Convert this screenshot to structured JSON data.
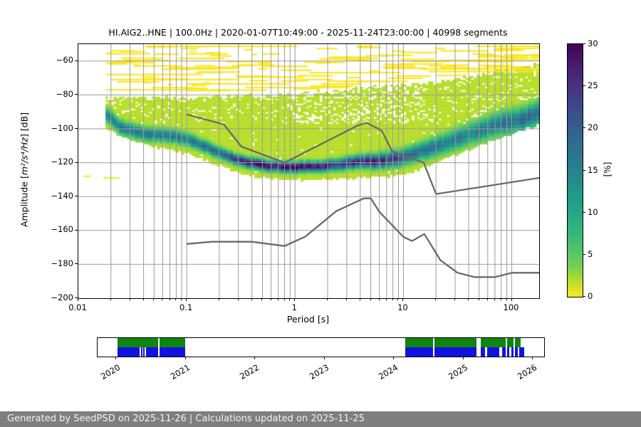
{
  "title": "HI.AIG2..HNE | 100.0Hz | 2020-01-07T10:49:00 - 2025-11-24T23:00:00 | 40998 segments",
  "footer": {
    "text": "Generated by SeedPSD on 2025-11-26 | Calculations updated on 2025-11-25",
    "bg": "#7f7f7f",
    "fg": "#f2f2f2"
  },
  "chart_data": {
    "type": "heatmap",
    "title": "HI.AIG2..HNE | 100.0Hz | 2020-01-07T10:49:00 - 2025-11-24T23:00:00 | 40998 segments",
    "xlabel": "Period [s]",
    "ylabel": "Amplitude [m²/s⁴/Hz] [dB]",
    "ylabel_parts": {
      "prefix": "Amplitude [",
      "math": "m²/s⁴/Hz",
      "suffix": "] [dB]"
    },
    "x_scale": "log",
    "xlim": [
      0.01,
      179
    ],
    "ylim": [
      -200,
      -50
    ],
    "grid": true,
    "x_major_ticks": [
      0.01,
      0.1,
      1,
      10,
      100
    ],
    "x_major_labels": [
      "0.01",
      "0.1",
      "1",
      "10",
      "100"
    ],
    "y_ticks": [
      -60,
      -80,
      -100,
      -120,
      -140,
      -160,
      -180,
      -200
    ],
    "y_tick_labels": [
      "−60",
      "−80",
      "−100",
      "−120",
      "−140",
      "−160",
      "−180",
      "−200"
    ],
    "grid_color": "#9b9b9b",
    "colorbar": {
      "label": "[%]",
      "min": 0,
      "max": 30,
      "ticks": [
        0,
        5,
        10,
        15,
        20,
        25,
        30
      ],
      "colormap": "viridis_r",
      "viridis_stops": [
        [
          0,
          "#440154"
        ],
        [
          0.125,
          "#482878"
        ],
        [
          0.25,
          "#3e4989"
        ],
        [
          0.375,
          "#31688e"
        ],
        [
          0.5,
          "#26828e"
        ],
        [
          0.625,
          "#1f9e89"
        ],
        [
          0.75,
          "#35b779"
        ],
        [
          0.875,
          "#6ece58"
        ],
        [
          0.9375,
          "#b5de2b"
        ],
        [
          1,
          "#fde725"
        ]
      ]
    },
    "histogram": {
      "period_range": [
        0.0178,
        179
      ],
      "mode_curve_db": [
        [
          0.018,
          -91
        ],
        [
          0.025,
          -99
        ],
        [
          0.04,
          -102.5
        ],
        [
          0.07,
          -103.5
        ],
        [
          0.1,
          -105.5
        ],
        [
          0.15,
          -110
        ],
        [
          0.22,
          -115
        ],
        [
          0.32,
          -118.5
        ],
        [
          0.5,
          -121
        ],
        [
          0.8,
          -122
        ],
        [
          1.6,
          -122
        ],
        [
          2.5,
          -120.5
        ],
        [
          4,
          -119
        ],
        [
          6,
          -118.5
        ],
        [
          9,
          -117
        ],
        [
          12,
          -114.5
        ],
        [
          20,
          -110
        ],
        [
          30,
          -106
        ],
        [
          50,
          -100.5
        ],
        [
          80,
          -96.5
        ],
        [
          120,
          -94.5
        ],
        [
          185,
          -90
        ]
      ],
      "peak_percent": [
        [
          0.018,
          13
        ],
        [
          0.03,
          15
        ],
        [
          0.08,
          14
        ],
        [
          0.15,
          16
        ],
        [
          0.25,
          20
        ],
        [
          0.4,
          28
        ],
        [
          0.9,
          29
        ],
        [
          1.5,
          26
        ],
        [
          2.5,
          23
        ],
        [
          3.5,
          25
        ],
        [
          6,
          25
        ],
        [
          9,
          21
        ],
        [
          12,
          17
        ],
        [
          20,
          14
        ],
        [
          40,
          14
        ],
        [
          80,
          16
        ],
        [
          185,
          17
        ]
      ],
      "spread_db": [
        [
          0.018,
          2.5
        ],
        [
          0.1,
          2.2
        ],
        [
          0.3,
          1.8
        ],
        [
          1.5,
          1.8
        ],
        [
          4,
          2.2
        ],
        [
          10,
          2.8
        ],
        [
          30,
          3.5
        ],
        [
          185,
          4.2
        ]
      ],
      "envelope_top_db": [
        [
          0.018,
          -81
        ],
        [
          0.05,
          -81.5
        ],
        [
          0.3,
          -80.5
        ],
        [
          1,
          -79
        ],
        [
          3,
          -76.5
        ],
        [
          8,
          -74
        ],
        [
          20,
          -71.5
        ],
        [
          50,
          -68
        ],
        [
          100,
          -64
        ],
        [
          185,
          -61
        ]
      ],
      "envelope_bottom_db": [
        [
          0.018,
          -98
        ],
        [
          0.03,
          -105
        ],
        [
          0.05,
          -109
        ],
        [
          0.1,
          -113
        ],
        [
          0.2,
          -120
        ],
        [
          0.3,
          -124
        ],
        [
          0.5,
          -127.5
        ],
        [
          1,
          -128.5
        ],
        [
          3,
          -128
        ],
        [
          8,
          -126.5
        ],
        [
          12,
          -124.5
        ],
        [
          20,
          -118.5
        ],
        [
          30,
          -114
        ],
        [
          50,
          -108
        ],
        [
          100,
          -101.5
        ],
        [
          185,
          -96
        ]
      ],
      "base_percent": 1.8,
      "long_streaks": [
        [
          -50.8,
          0.042,
          1.05
        ],
        [
          -50.8,
          3.6,
          5.2
        ],
        [
          -50.8,
          46,
          179
        ],
        [
          -53.5,
          0.02,
          0.033
        ],
        [
          -55.5,
          0.05,
          0.085
        ],
        [
          -56.5,
          4.5,
          7.5
        ],
        [
          -58,
          0.025,
          0.06
        ],
        [
          -60.5,
          0.018,
          0.05
        ],
        [
          -63.5,
          0.07,
          0.3
        ],
        [
          -64.3,
          14,
          179
        ],
        [
          -65.7,
          17,
          179
        ],
        [
          -66.4,
          1.35,
          9.5
        ],
        [
          -67.5,
          0.018,
          0.14
        ],
        [
          -69,
          0.3,
          1.2
        ],
        [
          -70.5,
          0.02,
          0.3
        ],
        [
          -71.5,
          2.5,
          11
        ],
        [
          -73,
          0.1,
          0.9
        ],
        [
          -75.2,
          0.35,
          3.2
        ],
        [
          -76.5,
          0.018,
          0.25
        ]
      ],
      "outlier_dashes": [
        [
          -127.5,
          0.0112,
          0.013
        ],
        [
          -128.5,
          0.017,
          0.024
        ]
      ],
      "random_streaks": {
        "count": 120,
        "seed": 42,
        "db_top": -51
      }
    },
    "noise_models": {
      "color": "#6a6a6a",
      "nhnm": [
        [
          0.1,
          -91.5
        ],
        [
          0.22,
          -97.4
        ],
        [
          0.32,
          -110.5
        ],
        [
          0.8,
          -120
        ],
        [
          3.8,
          -98
        ],
        [
          4.6,
          -96.5
        ],
        [
          6.3,
          -101
        ],
        [
          7.9,
          -113.5
        ],
        [
          15.4,
          -120
        ],
        [
          20,
          -138.5
        ],
        [
          179,
          -129
        ]
      ],
      "nlnm": [
        [
          0.1,
          -168
        ],
        [
          0.17,
          -166.7
        ],
        [
          0.4,
          -166.7
        ],
        [
          0.8,
          -169.2
        ],
        [
          1.24,
          -163.7
        ],
        [
          2.4,
          -148.6
        ],
        [
          4.3,
          -141.1
        ],
        [
          5,
          -141.1
        ],
        [
          6,
          -149
        ],
        [
          10,
          -163.8
        ],
        [
          12,
          -166.2
        ],
        [
          15.6,
          -162.1
        ],
        [
          21.9,
          -177.5
        ],
        [
          31.6,
          -185
        ],
        [
          45,
          -187.5
        ],
        [
          70,
          -187.5
        ],
        [
          101,
          -185
        ],
        [
          179,
          -185
        ]
      ]
    }
  },
  "timeline": {
    "green_color": "#0f850f",
    "blue_color": "#1212e0",
    "years": [
      "2020",
      "2021",
      "2022",
      "2023",
      "2024",
      "2025",
      "2026"
    ],
    "year_start_frac": 0.0415,
    "year_step_frac": 0.1555,
    "green_segments": [
      [
        0.0447,
        0.1356
      ],
      [
        0.1388,
        0.1962
      ],
      [
        0.689,
        0.7512
      ],
      [
        0.7544,
        0.848
      ],
      [
        0.8581,
        0.9139
      ],
      [
        0.9166,
        0.9314
      ],
      [
        0.9351,
        0.9474
      ]
    ],
    "blue_segments": [
      [
        0.0447,
        0.0941
      ],
      [
        0.0965,
        0.0997
      ],
      [
        0.1021,
        0.1053
      ],
      [
        0.1077,
        0.1356
      ],
      [
        0.1388,
        0.1962
      ],
      [
        0.689,
        0.7512
      ],
      [
        0.7544,
        0.848
      ],
      [
        0.8581,
        0.8676
      ],
      [
        0.872,
        0.8995
      ],
      [
        0.9064,
        0.9139
      ],
      [
        0.9166,
        0.9223
      ],
      [
        0.9262,
        0.9314
      ],
      [
        0.9351,
        0.941
      ],
      [
        0.9437,
        0.9553
      ]
    ]
  }
}
